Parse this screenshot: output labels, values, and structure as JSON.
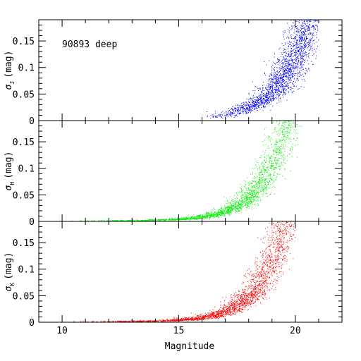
{
  "chart_data": {
    "type": "scatter",
    "annotation": "90893 deep",
    "xlabel": "Magnitude",
    "xlim": [
      9,
      22
    ],
    "x_ticks": [
      10,
      15,
      20
    ],
    "x_tick_labels": [
      "10",
      "15",
      "20"
    ],
    "panels": [
      {
        "ylabel_symbol": "σ",
        "ylabel_sub": "J",
        "ylabel_unit": "(mag)",
        "ylim": [
          0,
          0.19
        ],
        "y_ticks": [
          0,
          0.05,
          0.1,
          0.15
        ],
        "y_tick_labels": [
          "0",
          "0.05",
          "0.1",
          "0.15"
        ],
        "color": "#0000ff",
        "curve": {
          "mag_start": 15.8,
          "mag_end": 21.0,
          "base": 0.002,
          "amp": 0.0045,
          "slope": 0.72,
          "ref_mag": 16.0,
          "scatter": 0.3
        }
      },
      {
        "ylabel_symbol": "σ",
        "ylabel_sub": "H",
        "ylabel_unit": "(mag)",
        "ylim": [
          0,
          0.19
        ],
        "y_ticks": [
          0,
          0.05,
          0.1,
          0.15
        ],
        "y_tick_labels": [
          "0",
          "0.05",
          "0.1",
          "0.15"
        ],
        "color": "#00ee00",
        "curve": {
          "mag_start": 10.0,
          "mag_end": 20.5,
          "base": 0.001,
          "amp": 0.003,
          "slope": 0.78,
          "ref_mag": 15.0,
          "scatter": 0.28
        }
      },
      {
        "ylabel_symbol": "σ",
        "ylabel_sub": "K",
        "ylabel_unit": "(mag)",
        "ylim": [
          0,
          0.19
        ],
        "y_ticks": [
          0,
          0.05,
          0.1,
          0.15
        ],
        "y_tick_labels": [
          "0",
          "0.05",
          "0.1",
          "0.15"
        ],
        "color": "#ff0000",
        "curve": {
          "mag_start": 10.0,
          "mag_end": 20.0,
          "base": 0.001,
          "amp": 0.003,
          "slope": 0.8,
          "ref_mag": 15.0,
          "scatter": 0.3
        }
      }
    ]
  }
}
